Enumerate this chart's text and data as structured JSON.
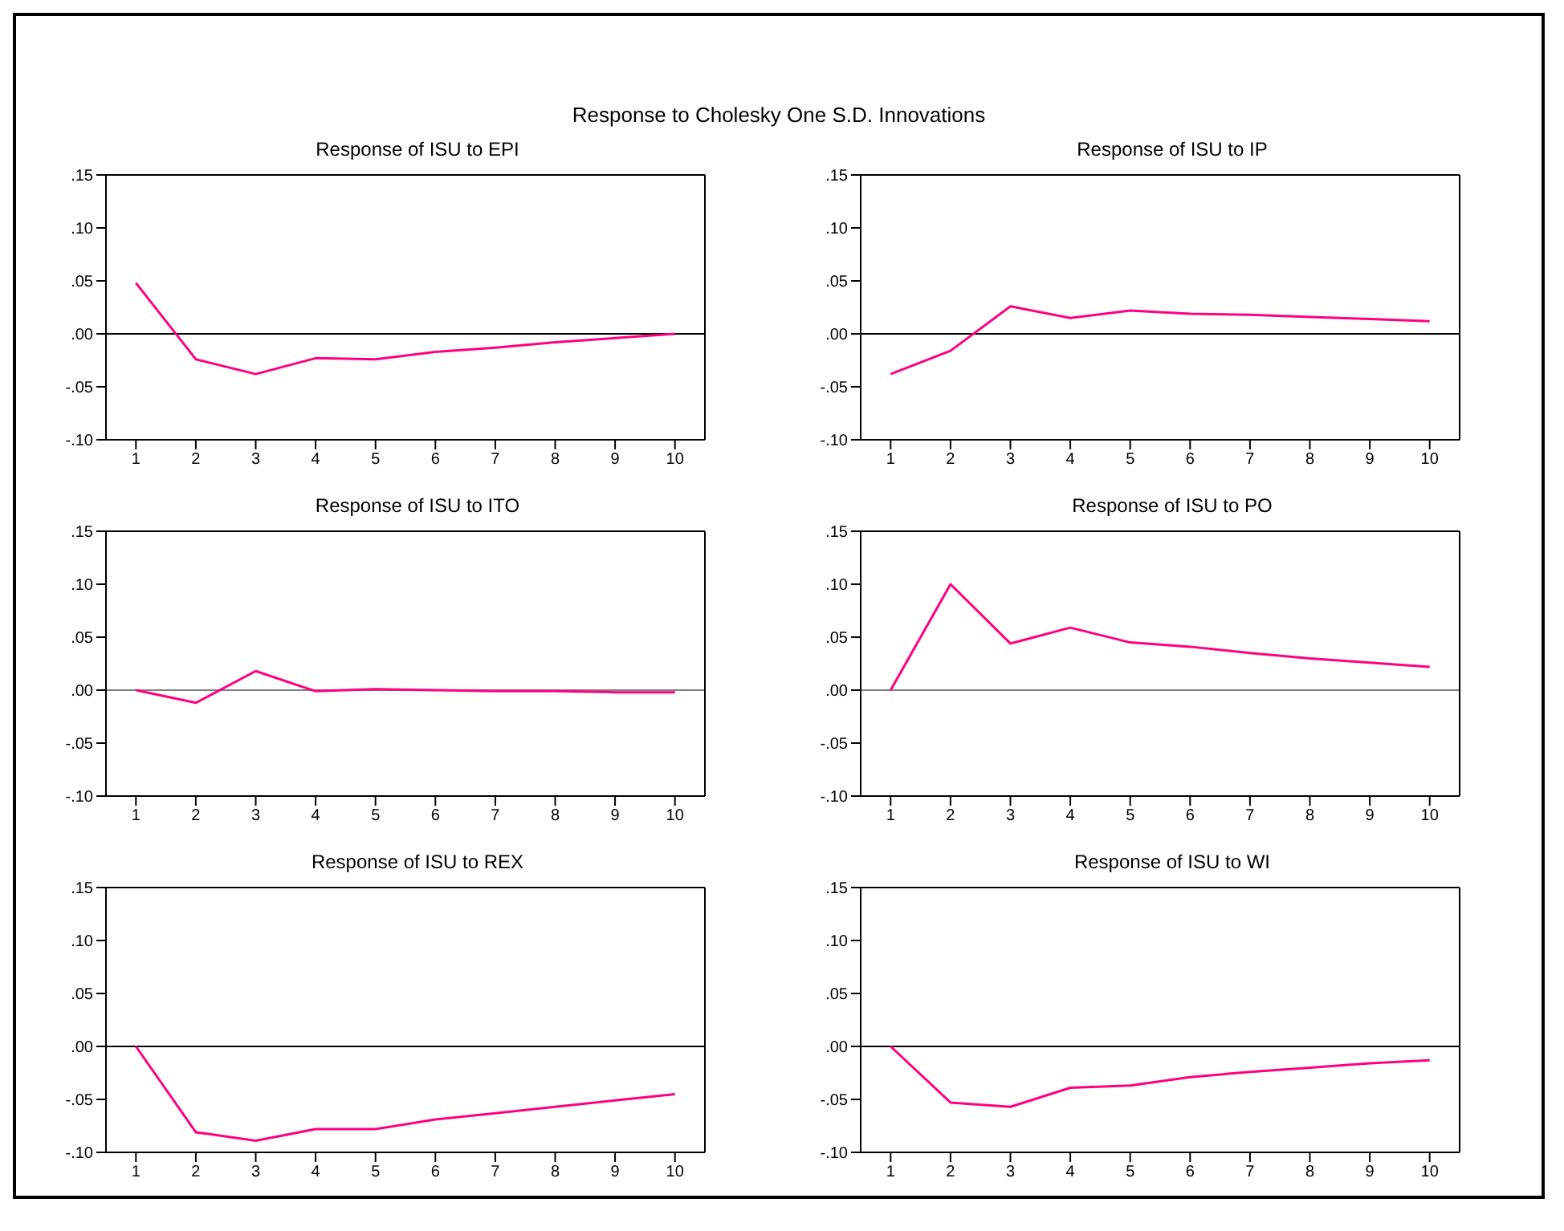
{
  "chart_data": [
    {
      "type": "line",
      "title": "Response of ISU to EPI",
      "annotations": [
        "Response to Cholesky One S.D. Innovations"
      ],
      "categories": [
        "1",
        "2",
        "3",
        "4",
        "5",
        "6",
        "7",
        "8",
        "9",
        "10"
      ],
      "series": [
        {
          "color": "#ff0080",
          "values": [
            0.048,
            -0.024,
            -0.038,
            -0.023,
            -0.024,
            -0.017,
            -0.013,
            -0.008,
            -0.004,
            0.0
          ]
        }
      ],
      "ylim": [
        -0.1,
        0.15
      ],
      "yticks": [
        {
          "value": -0.1,
          "label": "-.10"
        },
        {
          "value": -0.05,
          "label": "-.05"
        },
        {
          "value": 0,
          "label": ".00"
        },
        {
          "value": 0.05,
          "label": ".05"
        },
        {
          "value": 0.1,
          "label": ".10"
        },
        {
          "value": 0.15,
          "label": ".15"
        }
      ],
      "ref_lines": [
        {
          "axis": "y",
          "value": 0,
          "color": "#000000"
        }
      ],
      "grid": false,
      "legend": false,
      "marker": "none",
      "line_style": "solid"
    },
    {
      "type": "line",
      "title": "Response of ISU to IP",
      "categories": [
        "1",
        "2",
        "3",
        "4",
        "5",
        "6",
        "7",
        "8",
        "9",
        "10"
      ],
      "series": [
        {
          "color": "#ff0080",
          "values": [
            -0.038,
            -0.016,
            0.026,
            0.015,
            0.022,
            0.019,
            0.018,
            0.016,
            0.014,
            0.012
          ]
        }
      ],
      "ylim": [
        -0.1,
        0.15
      ],
      "yticks": [
        {
          "value": -0.1,
          "label": "-.10"
        },
        {
          "value": -0.05,
          "label": "-.05"
        },
        {
          "value": 0,
          "label": ".00"
        },
        {
          "value": 0.05,
          "label": ".05"
        },
        {
          "value": 0.1,
          "label": ".10"
        },
        {
          "value": 0.15,
          "label": ".15"
        }
      ],
      "ref_lines": [
        {
          "axis": "y",
          "value": 0,
          "color": "#000000"
        }
      ],
      "grid": false,
      "legend": false,
      "marker": "none",
      "line_style": "solid"
    },
    {
      "type": "line",
      "title": "Response of ISU to ITO",
      "categories": [
        "1",
        "2",
        "3",
        "4",
        "5",
        "6",
        "7",
        "8",
        "9",
        "10"
      ],
      "series": [
        {
          "color": "#ff0080",
          "values": [
            0.0,
            -0.012,
            0.018,
            -0.001,
            0.001,
            0.0,
            -0.001,
            -0.001,
            -0.002,
            -0.002
          ]
        }
      ],
      "ylim": [
        -0.1,
        0.15
      ],
      "yticks": [
        {
          "value": -0.1,
          "label": "-.10"
        },
        {
          "value": -0.05,
          "label": "-.05"
        },
        {
          "value": 0,
          "label": ".00"
        },
        {
          "value": 0.05,
          "label": ".05"
        },
        {
          "value": 0.1,
          "label": ".10"
        },
        {
          "value": 0.15,
          "label": ".15"
        }
      ],
      "ref_lines": [
        {
          "axis": "y",
          "value": 0,
          "color": "#808080"
        }
      ],
      "grid": false,
      "legend": false,
      "marker": "none",
      "line_style": "solid"
    },
    {
      "type": "line",
      "title": "Response of ISU to PO",
      "categories": [
        "1",
        "2",
        "3",
        "4",
        "5",
        "6",
        "7",
        "8",
        "9",
        "10"
      ],
      "series": [
        {
          "color": "#ff0080",
          "values": [
            0.0,
            0.1,
            0.044,
            0.059,
            0.045,
            0.041,
            0.035,
            0.03,
            0.026,
            0.022
          ]
        }
      ],
      "ylim": [
        -0.1,
        0.15
      ],
      "yticks": [
        {
          "value": -0.1,
          "label": "-.10"
        },
        {
          "value": -0.05,
          "label": "-.05"
        },
        {
          "value": 0,
          "label": ".00"
        },
        {
          "value": 0.05,
          "label": ".05"
        },
        {
          "value": 0.1,
          "label": ".10"
        },
        {
          "value": 0.15,
          "label": ".15"
        }
      ],
      "ref_lines": [
        {
          "axis": "y",
          "value": 0,
          "color": "#808080"
        }
      ],
      "grid": false,
      "legend": false,
      "marker": "none",
      "line_style": "solid"
    },
    {
      "type": "line",
      "title": "Response of ISU to REX",
      "categories": [
        "1",
        "2",
        "3",
        "4",
        "5",
        "6",
        "7",
        "8",
        "9",
        "10"
      ],
      "series": [
        {
          "color": "#ff0080",
          "values": [
            0.0,
            -0.081,
            -0.089,
            -0.078,
            -0.078,
            -0.069,
            -0.063,
            -0.057,
            -0.051,
            -0.045
          ]
        }
      ],
      "ylim": [
        -0.1,
        0.15
      ],
      "yticks": [
        {
          "value": -0.1,
          "label": "-.10"
        },
        {
          "value": -0.05,
          "label": "-.05"
        },
        {
          "value": 0,
          "label": ".00"
        },
        {
          "value": 0.05,
          "label": ".05"
        },
        {
          "value": 0.1,
          "label": ".10"
        },
        {
          "value": 0.15,
          "label": ".15"
        }
      ],
      "ref_lines": [
        {
          "axis": "y",
          "value": 0,
          "color": "#000000"
        }
      ],
      "grid": false,
      "legend": false,
      "marker": "none",
      "line_style": "solid"
    },
    {
      "type": "line",
      "title": "Response of ISU to WI",
      "categories": [
        "1",
        "2",
        "3",
        "4",
        "5",
        "6",
        "7",
        "8",
        "9",
        "10"
      ],
      "series": [
        {
          "color": "#ff0080",
          "values": [
            0.0,
            -0.053,
            -0.057,
            -0.039,
            -0.037,
            -0.029,
            -0.024,
            -0.02,
            -0.016,
            -0.013
          ]
        }
      ],
      "ylim": [
        -0.1,
        0.15
      ],
      "yticks": [
        {
          "value": -0.1,
          "label": "-.10"
        },
        {
          "value": -0.05,
          "label": "-.05"
        },
        {
          "value": 0,
          "label": ".00"
        },
        {
          "value": 0.05,
          "label": ".05"
        },
        {
          "value": 0.1,
          "label": ".10"
        },
        {
          "value": 0.15,
          "label": ".15"
        }
      ],
      "ref_lines": [
        {
          "axis": "y",
          "value": 0,
          "color": "#000000"
        }
      ],
      "grid": false,
      "legend": false,
      "marker": "none",
      "line_style": "solid"
    }
  ]
}
